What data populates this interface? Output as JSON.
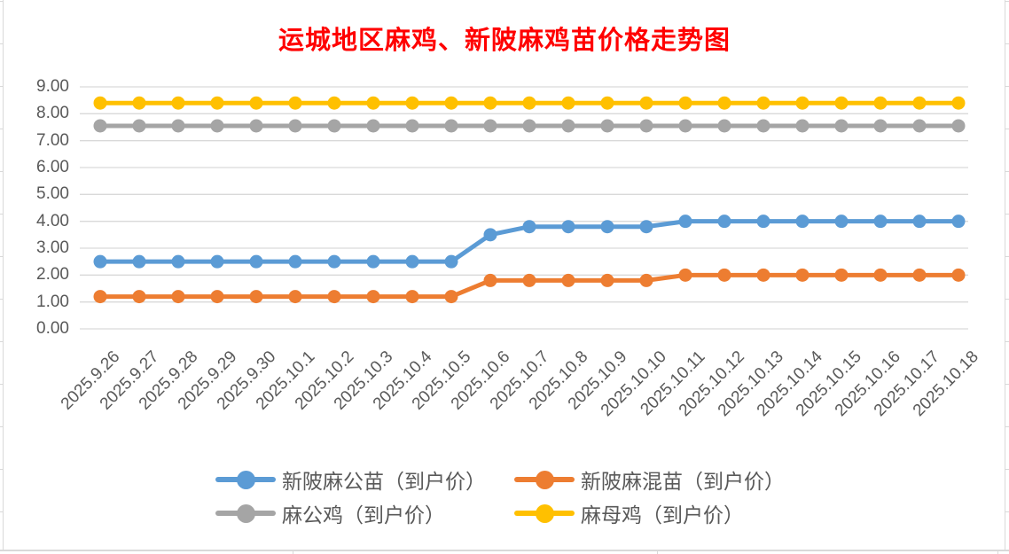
{
  "page": {
    "background": "#ffffff"
  },
  "chart_data": {
    "type": "line",
    "title": "运城地区麻鸡、新陂麻鸡苗价格走势图",
    "title_color": "#ff0000",
    "xlabel": "",
    "ylabel": "",
    "ylim": [
      0,
      9
    ],
    "yticks": [
      "9.00",
      "8.00",
      "7.00",
      "6.00",
      "5.00",
      "4.00",
      "3.00",
      "2.00",
      "1.00",
      "0.00"
    ],
    "ytick_values": [
      9,
      8,
      7,
      6,
      5,
      4,
      3,
      2,
      1,
      0
    ],
    "grid": "horizontal",
    "gridline_color": "#d9d9d9",
    "axis_text_color": "#595959",
    "legend_position": "bottom",
    "categories": [
      "2025.9.26",
      "2025.9.27",
      "2025.9.28",
      "2025.9.29",
      "2025.9.30",
      "2025.10.1",
      "2025.10.2",
      "2025.10.3",
      "2025.10.4",
      "2025.10.5",
      "2025.10.6",
      "2025.10.7",
      "2025.10.8",
      "2025.10.9",
      "2025.10.10",
      "2025.10.11",
      "2025.10.12",
      "2025.10.13",
      "2025.10.14",
      "2025.10.15",
      "2025.10.16",
      "2025.10.17",
      "2025.10.18"
    ],
    "series": [
      {
        "id": "xinpo-male-chick",
        "name": "新陂麻公苗（到户价）",
        "color": "#5b9bd5",
        "values": [
          2.5,
          2.5,
          2.5,
          2.5,
          2.5,
          2.5,
          2.5,
          2.5,
          2.5,
          2.5,
          3.5,
          3.8,
          3.8,
          3.8,
          3.8,
          4.0,
          4.0,
          4.0,
          4.0,
          4.0,
          4.0,
          4.0,
          4.0
        ]
      },
      {
        "id": "xinpo-mixed-chick",
        "name": "新陂麻混苗（到户价）",
        "color": "#ed7d31",
        "values": [
          1.2,
          1.2,
          1.2,
          1.2,
          1.2,
          1.2,
          1.2,
          1.2,
          1.2,
          1.2,
          1.8,
          1.8,
          1.8,
          1.8,
          1.8,
          2.0,
          2.0,
          2.0,
          2.0,
          2.0,
          2.0,
          2.0,
          2.0
        ]
      },
      {
        "id": "ma-rooster",
        "name": "麻公鸡（到户价）",
        "color": "#a5a5a5",
        "values": [
          7.55,
          7.55,
          7.55,
          7.55,
          7.55,
          7.55,
          7.55,
          7.55,
          7.55,
          7.55,
          7.55,
          7.55,
          7.55,
          7.55,
          7.55,
          7.55,
          7.55,
          7.55,
          7.55,
          7.55,
          7.55,
          7.55,
          7.55
        ]
      },
      {
        "id": "ma-hen",
        "name": "麻母鸡（到户价）",
        "color": "#ffc000",
        "values": [
          8.4,
          8.4,
          8.4,
          8.4,
          8.4,
          8.4,
          8.4,
          8.4,
          8.4,
          8.4,
          8.4,
          8.4,
          8.4,
          8.4,
          8.4,
          8.4,
          8.4,
          8.4,
          8.4,
          8.4,
          8.4,
          8.4,
          8.4
        ]
      }
    ]
  }
}
